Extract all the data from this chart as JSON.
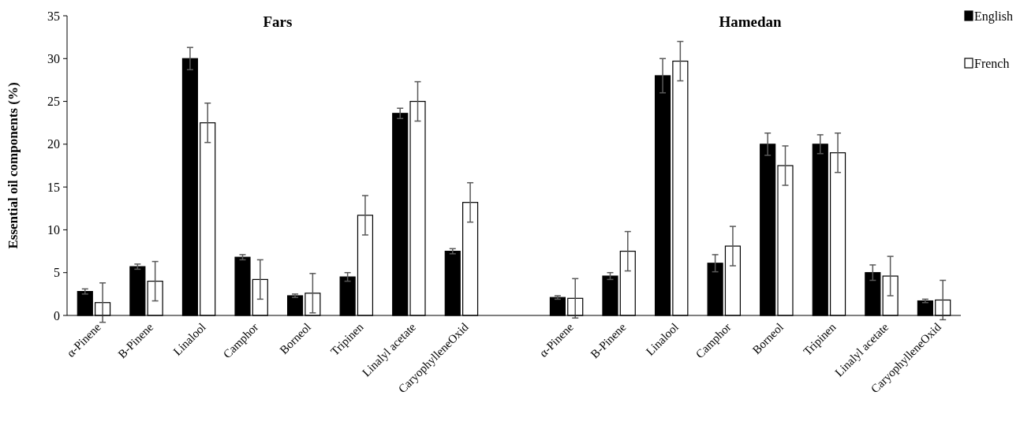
{
  "chart_data": {
    "type": "bar",
    "ylabel": "Essential oil components (%)",
    "annotations": [
      "Fars",
      "Hamedan"
    ],
    "categories": [
      "α-Pinene",
      "B-Pinene",
      "Linalool",
      "Camphor",
      "Borneol",
      "Tripinen",
      "Linalyl acetate",
      "CaryophylleneOxid",
      null,
      "α-Pinene",
      "B-Pinene",
      "Linalool",
      "Camphor",
      "Borneol",
      "Tripinen",
      "Linalyl acetate",
      "CaryophylleneOxid"
    ],
    "series": [
      {
        "name": "English",
        "color": "#000000",
        "values": [
          2.8,
          5.7,
          30,
          6.8,
          2.3,
          4.5,
          23.6,
          7.5,
          null,
          2.1,
          4.6,
          28,
          6.1,
          20,
          20,
          5,
          1.7
        ],
        "errors": [
          0.3,
          0.3,
          1.3,
          0.3,
          0.2,
          0.5,
          0.6,
          0.3,
          null,
          0.2,
          0.4,
          2,
          1,
          1.3,
          1.1,
          0.9,
          0.2
        ]
      },
      {
        "name": "French",
        "color": "#ffffff",
        "values": [
          1.5,
          4,
          22.5,
          4.2,
          2.6,
          11.7,
          25,
          13.2,
          null,
          2,
          7.5,
          29.7,
          8.1,
          17.5,
          19,
          4.6,
          1.8
        ],
        "errors": [
          2.3,
          2.3,
          2.3,
          2.3,
          2.3,
          2.3,
          2.3,
          2.3,
          null,
          2.3,
          2.3,
          2.3,
          2.3,
          2.3,
          2.3,
          2.3,
          2.3
        ]
      }
    ],
    "ylim": [
      0,
      35
    ],
    "yticks": [
      0,
      5,
      10,
      15,
      20,
      25,
      30,
      35
    ],
    "grid": false,
    "legend": "top right"
  }
}
